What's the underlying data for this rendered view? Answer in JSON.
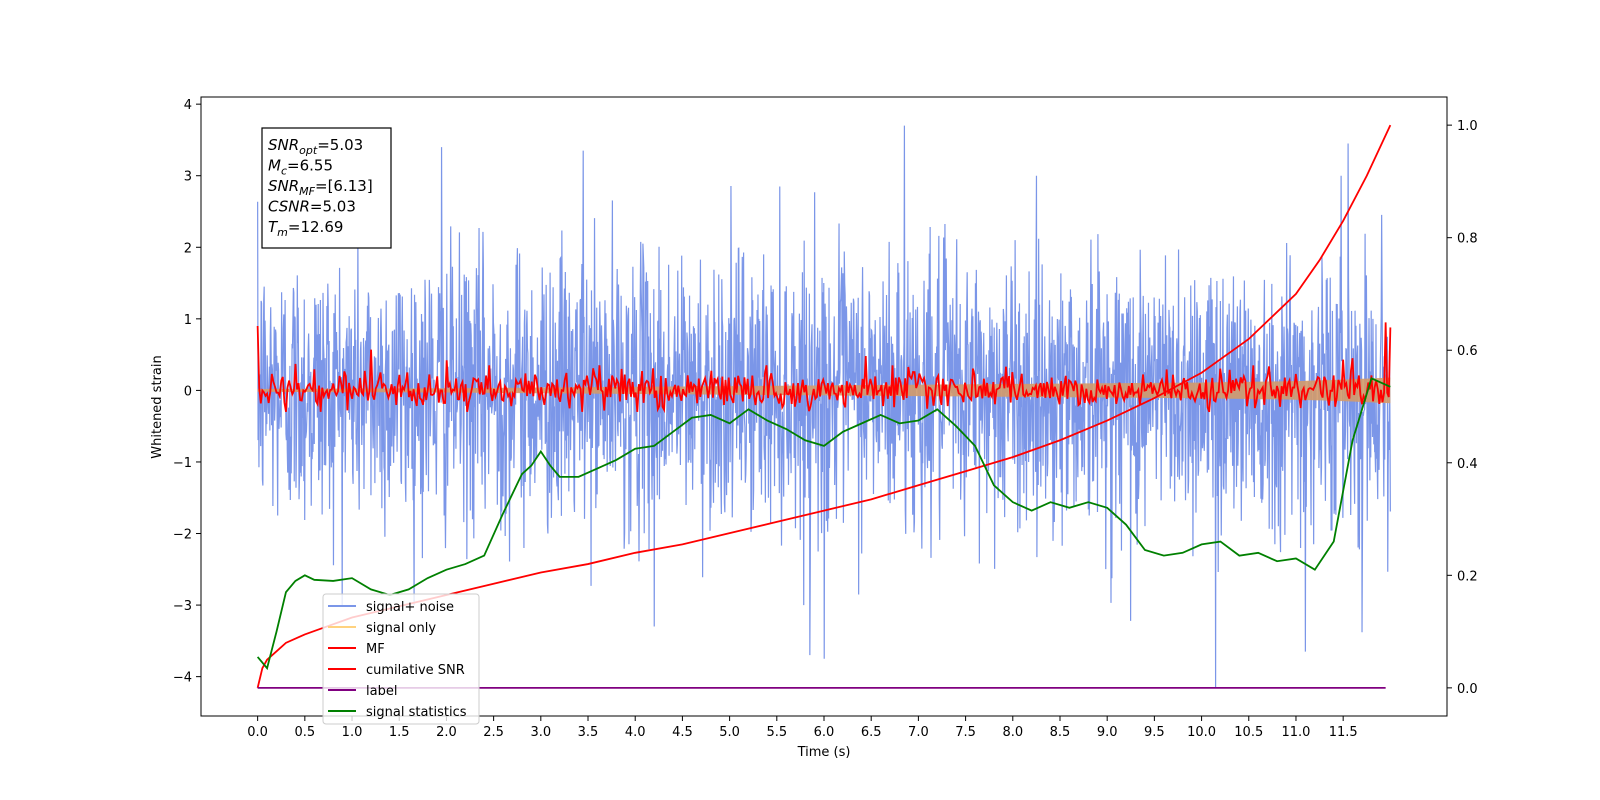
{
  "chart_data": {
    "type": "line",
    "xlabel": "Time (s)",
    "ylabel": "Whitened strain",
    "xlim": [
      -0.6,
      12.6
    ],
    "ylim": [
      -4.55,
      4.1
    ],
    "y2lim": [
      -0.05,
      1.05
    ],
    "x_ticks": [
      0.0,
      0.5,
      1.0,
      1.5,
      2.0,
      2.5,
      3.0,
      3.5,
      4.0,
      4.5,
      5.0,
      5.5,
      6.0,
      6.5,
      7.0,
      7.5,
      8.0,
      8.5,
      9.0,
      9.5,
      10.0,
      10.5,
      11.0,
      11.5
    ],
    "x_tick_labels": [
      "0.0",
      "0.5",
      "1.0",
      "1.5",
      "2.0",
      "2.5",
      "3.0",
      "3.5",
      "4.0",
      "4.5",
      "5.0",
      "5.5",
      "6.0",
      "6.5",
      "7.0",
      "7.5",
      "8.0",
      "8.5",
      "9.0",
      "9.5",
      "10.0",
      "10.5",
      "11.0",
      "11.5"
    ],
    "y_ticks": [
      4,
      3,
      2,
      1,
      0,
      -1,
      -2,
      -3,
      -4
    ],
    "y_tick_labels": [
      "4",
      "3",
      "2",
      "1",
      "0",
      "−1",
      "−2",
      "−3",
      "−4"
    ],
    "y2_ticks": [
      1.0,
      0.8,
      0.6,
      0.4,
      0.2,
      0.0
    ],
    "y2_tick_labels": [
      "1.0",
      "0.8",
      "0.6",
      "0.4",
      "0.2",
      "0.0"
    ],
    "legend": {
      "location": "lower-left",
      "entries": [
        {
          "label": "signal+ noise",
          "color": "#7b96e8"
        },
        {
          "label": "signal only",
          "color": "#ffd27f"
        },
        {
          "label": "MF",
          "color": "#ff0000"
        },
        {
          "label": "cumilative SNR",
          "color": "#ff0000"
        },
        {
          "label": "label",
          "color": "#800080"
        },
        {
          "label": "signal statistics",
          "color": "#008000"
        }
      ]
    },
    "annotation": {
      "lines": [
        {
          "main": "SNR",
          "sub": "opt",
          "rest": "=5.03"
        },
        {
          "main": "M",
          "sub": "c",
          "rest": "=6.55"
        },
        {
          "main": "SNR",
          "sub": "MF",
          "rest": "=[6.13]"
        },
        {
          "main": "CSNR",
          "sub": "",
          "rest": "=5.03"
        },
        {
          "main": "T",
          "sub": "m",
          "rest": "=12.69"
        }
      ]
    },
    "series": [
      {
        "name": "signal+ noise",
        "axis": "left",
        "color": "#7b96e8",
        "kind": "noise",
        "x_range": [
          0,
          12.0
        ],
        "sigma": 0.95,
        "spikes": [
          [
            1.95,
            3.4
          ],
          [
            3.45,
            3.35
          ],
          [
            6.85,
            3.7
          ],
          [
            11.55,
            3.45
          ],
          [
            10.15,
            -4.15
          ],
          [
            6.0,
            -3.75
          ],
          [
            5.85,
            -3.7
          ],
          [
            11.1,
            -3.65
          ],
          [
            4.2,
            -3.3
          ],
          [
            9.25,
            -3.22
          ],
          [
            11.7,
            -3.38
          ]
        ]
      },
      {
        "name": "signal only",
        "axis": "left",
        "color": "#ffd27f",
        "kind": "band",
        "x": [
          0,
          2,
          4,
          6,
          8,
          10,
          11,
          11.5,
          12.0
        ],
        "amplitude": [
          0.02,
          0.03,
          0.05,
          0.07,
          0.09,
          0.11,
          0.13,
          0.15,
          0.18
        ]
      },
      {
        "name": "MF",
        "axis": "left",
        "color": "#ff0000",
        "kind": "noise-line",
        "x_range": [
          0,
          12.0
        ],
        "sigma": 0.13,
        "points": [
          [
            0.0,
            0.9
          ],
          [
            0.05,
            0.0
          ],
          [
            1.2,
            0.57
          ],
          [
            0.4,
            0.37
          ],
          [
            2.0,
            0.42
          ],
          [
            3.85,
            0.3
          ],
          [
            6.45,
            0.48
          ],
          [
            11.5,
            0.43
          ],
          [
            11.6,
            0.45
          ],
          [
            11.95,
            0.95
          ],
          [
            12.0,
            0.88
          ]
        ]
      },
      {
        "name": "cumilative SNR",
        "axis": "right",
        "color": "#ff0000",
        "kind": "line",
        "x": [
          0,
          0.05,
          0.1,
          0.2,
          0.3,
          0.5,
          0.75,
          1.0,
          1.5,
          2.0,
          2.5,
          3.0,
          3.5,
          4.0,
          4.5,
          5.0,
          5.5,
          6.0,
          6.5,
          7.0,
          7.5,
          8.0,
          8.5,
          9.0,
          9.5,
          10.0,
          10.5,
          11.0,
          11.25,
          11.5,
          11.75,
          12.0
        ],
        "y": [
          0.0,
          0.035,
          0.05,
          0.065,
          0.08,
          0.095,
          0.11,
          0.125,
          0.145,
          0.165,
          0.185,
          0.205,
          0.22,
          0.24,
          0.255,
          0.275,
          0.295,
          0.315,
          0.335,
          0.36,
          0.385,
          0.41,
          0.44,
          0.475,
          0.515,
          0.56,
          0.62,
          0.7,
          0.76,
          0.83,
          0.91,
          1.0
        ]
      },
      {
        "name": "label",
        "axis": "right",
        "color": "#800080",
        "kind": "line",
        "x": [
          0,
          11.95
        ],
        "y": [
          0.0,
          0.0
        ]
      },
      {
        "name": "signal statistics",
        "axis": "right",
        "color": "#008000",
        "kind": "line",
        "x": [
          0,
          0.1,
          0.2,
          0.3,
          0.4,
          0.5,
          0.6,
          0.8,
          1.0,
          1.2,
          1.4,
          1.6,
          1.8,
          2.0,
          2.2,
          2.4,
          2.6,
          2.8,
          2.9,
          3.0,
          3.1,
          3.2,
          3.4,
          3.6,
          3.8,
          4.0,
          4.2,
          4.4,
          4.6,
          4.8,
          5.0,
          5.2,
          5.4,
          5.6,
          5.8,
          6.0,
          6.2,
          6.4,
          6.6,
          6.8,
          7.0,
          7.2,
          7.4,
          7.6,
          7.8,
          8.0,
          8.2,
          8.4,
          8.6,
          8.8,
          9.0,
          9.2,
          9.4,
          9.6,
          9.8,
          10.0,
          10.2,
          10.4,
          10.6,
          10.8,
          11.0,
          11.2,
          11.4,
          11.6,
          11.8,
          12.0
        ],
        "y": [
          0.055,
          0.035,
          0.1,
          0.17,
          0.19,
          0.2,
          0.192,
          0.19,
          0.195,
          0.175,
          0.165,
          0.175,
          0.195,
          0.21,
          0.22,
          0.235,
          0.31,
          0.38,
          0.395,
          0.42,
          0.395,
          0.375,
          0.375,
          0.39,
          0.405,
          0.425,
          0.43,
          0.455,
          0.48,
          0.485,
          0.47,
          0.495,
          0.475,
          0.46,
          0.44,
          0.43,
          0.455,
          0.47,
          0.485,
          0.47,
          0.475,
          0.495,
          0.465,
          0.43,
          0.36,
          0.33,
          0.315,
          0.33,
          0.32,
          0.33,
          0.32,
          0.29,
          0.245,
          0.235,
          0.24,
          0.255,
          0.26,
          0.235,
          0.24,
          0.225,
          0.23,
          0.21,
          0.26,
          0.44,
          0.55,
          0.535
        ]
      }
    ]
  }
}
